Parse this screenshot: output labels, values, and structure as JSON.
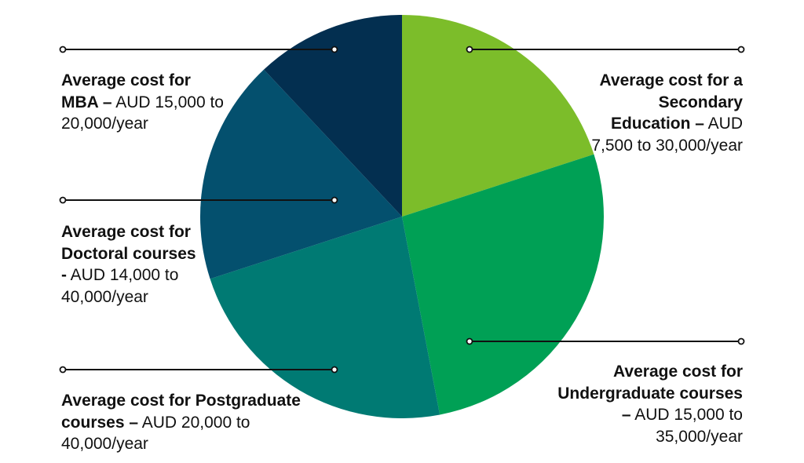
{
  "chart_data": {
    "type": "pie",
    "slices": [
      {
        "key": "secondary",
        "value": 20,
        "color": "#7cbd2a"
      },
      {
        "key": "undergraduate",
        "value": 27,
        "color": "#00a055"
      },
      {
        "key": "postgraduate",
        "value": 23,
        "color": "#007a73"
      },
      {
        "key": "doctoral",
        "value": 18,
        "color": "#04506e"
      },
      {
        "key": "mba",
        "value": 12,
        "color": "#032f50"
      }
    ],
    "annotations": {
      "mba": {
        "bold": "Average cost for MBA –",
        "rest": " AUD 15,000 to 20,000/year"
      },
      "doctoral": {
        "bold": "Average cost for Doctoral courses -",
        "rest": " AUD 14,000 to 40,000/year"
      },
      "postgraduate": {
        "bold": "Average cost for Postgraduate courses –",
        "rest": " AUD 20,000 to 40,000/year"
      },
      "secondary": {
        "bold": "Average cost for a Secondary Education –",
        "rest": " AUD 7,500 to 30,000/year"
      },
      "undergraduate": {
        "bold": "Average cost for Undergraduate courses –",
        "rest": " AUD 15,000 to 35,000/year"
      }
    },
    "legend": "none"
  }
}
